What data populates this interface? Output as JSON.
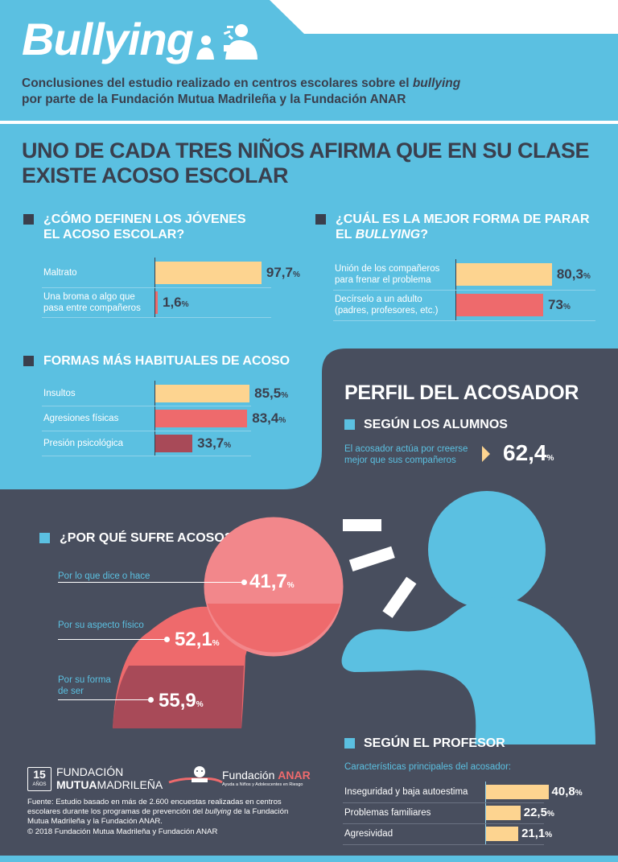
{
  "header": {
    "title": "Bullying",
    "subtitle_line1_pre": "Conclusiones del estudio realizado en centros escolares sobre el ",
    "subtitle_line1_em": "bullying",
    "subtitle_line2": "por parte de la Fundación Mutua Madrileña y la Fundación ANAR"
  },
  "headline_line1": "UNO DE CADA TRES NIÑOS AFIRMA QUE EN SU CLASE",
  "headline_line2": "EXISTE ACOSO ESCOLAR",
  "pct": "%",
  "colors": {
    "sky": "#5bc0e1",
    "dark": "#484e5e",
    "yellow": "#fdd490",
    "coral": "#ee6a6c",
    "maroon": "#a84a58",
    "salmon": "#f2878b"
  },
  "chart_data": [
    {
      "type": "bar",
      "title_line1": "¿CÓMO DEFINEN LOS JÓVENES",
      "title_line2": "EL ACOSO ESCOLAR?",
      "categories": [
        "Maltrato",
        "Una broma o algo que pasa entre compañeros"
      ],
      "labels": [
        [
          "Maltrato"
        ],
        [
          "Una broma o algo que",
          "pasa entre compañeros"
        ]
      ],
      "values": [
        97.7,
        1.6
      ],
      "value_labels": [
        "97,7",
        "1,6"
      ],
      "colors": [
        "#fdd490",
        "#ee6a6c"
      ]
    },
    {
      "type": "bar",
      "title_line1": "¿CUÁL ES LA MEJOR FORMA DE PARAR",
      "title_line2_pre": "EL ",
      "title_line2_em": "BULLYING",
      "title_line2_post": "?",
      "categories": [
        "Unión de los compañeros para frenar el problema",
        "Decírselo a un adulto (padres, profesores, etc.)"
      ],
      "labels": [
        [
          "Unión de los compañeros",
          "para frenar  el problema"
        ],
        [
          "Decírselo a un adulto",
          "(padres, profesores, etc.)"
        ]
      ],
      "values": [
        80.3,
        73
      ],
      "value_labels": [
        "80,3",
        "73"
      ],
      "colors": [
        "#fdd490",
        "#ee6a6c"
      ]
    },
    {
      "type": "bar",
      "title": "FORMAS MÁS HABITUALES DE ACOSO",
      "categories": [
        "Insultos",
        "Agresiones físicas",
        "Presión psicológica"
      ],
      "values": [
        85.5,
        83.4,
        33.7
      ],
      "value_labels": [
        "85,5",
        "83,4",
        "33,7"
      ],
      "colors": [
        "#fdd490",
        "#ee6a6c",
        "#a84a58"
      ]
    },
    {
      "type": "bubble",
      "title": "¿POR QUÉ SUFRE ACOSO?",
      "categories": [
        "Por lo que dice o hace",
        "Por su aspecto físico",
        "Por su forma de ser"
      ],
      "labels": [
        [
          "Por lo que dice o hace"
        ],
        [
          "Por su aspecto físico"
        ],
        [
          "Por su forma",
          "de ser"
        ]
      ],
      "values": [
        41.7,
        52.1,
        55.9
      ],
      "value_labels": [
        "41,7",
        "52,1",
        "55,9"
      ],
      "colors": [
        "#f2878b",
        "#ee6a6c",
        "#a84a58"
      ]
    },
    {
      "type": "bar",
      "title": "SEGÚN EL PROFESOR",
      "subtitle": "Características principales del acosador:",
      "categories": [
        "Inseguridad y baja autoestima",
        "Problemas familiares",
        "Agresividad"
      ],
      "values": [
        40.8,
        22.5,
        21.1
      ],
      "value_labels": [
        "40,8",
        "22,5",
        "21,1"
      ],
      "colors": [
        "#fdd490",
        "#fdd490",
        "#fdd490"
      ]
    }
  ],
  "profile": {
    "title": "PERFIL DEL ACOSADOR",
    "alumnos_title": "SEGÚN LOS ALUMNOS",
    "alumnos_text_line1": "El acosador actúa por creerse",
    "alumnos_text_line2": "mejor que sus compañeros",
    "alumnos_value": "62,4"
  },
  "footer": {
    "mutua_badge_num": "15",
    "mutua_badge_sub": "AÑOS",
    "mutua_line1": "FUNDACIÓN",
    "mutua_line2a": "MUTUA",
    "mutua_line2b": "MADRILEÑA",
    "anar_pre": "Fundación ",
    "anar_name": "ANAR",
    "anar_tagline": "Ayuda a Niños y Adolescentes en Riesgo",
    "source_line1": "Fuente: Estudio basado en más de 2.600 encuestas realizadas en centros",
    "source_line2": "escolares durante los programas de prevención del",
    "source_line2_em": "bullying",
    "source_line2_post": "de la Fundación",
    "source_line3": "Mutua Madrileña y la Fundación ANAR.",
    "copyright": "© 2018 Fundación Mutua Madrileña y Fundación ANAR"
  }
}
